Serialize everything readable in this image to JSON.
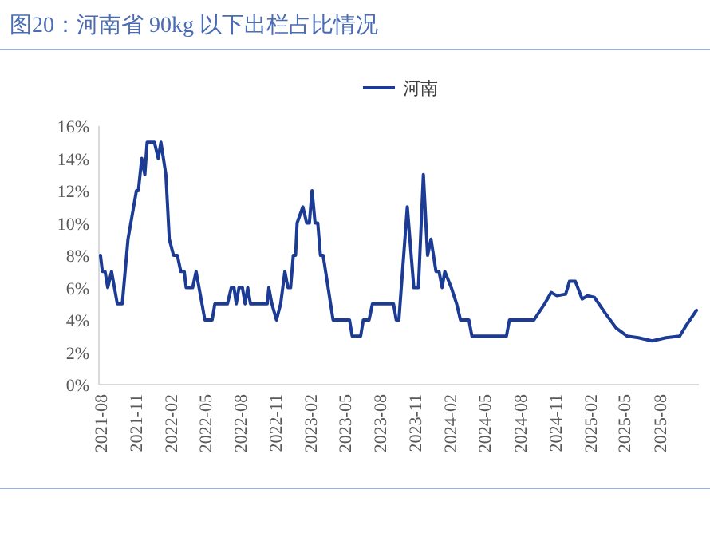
{
  "chart_data": {
    "type": "line",
    "title": "图20：河南省 90kg 以下出栏占比情况",
    "x": [
      "2021-08-01",
      "2021-08-06",
      "2021-08-13",
      "2021-08-20",
      "2021-08-30",
      "2021-09-14",
      "2021-09-27",
      "2021-10-12",
      "2021-11-03",
      "2021-11-08",
      "2021-11-17",
      "2021-11-25",
      "2021-12-01",
      "2021-12-20",
      "2021-12-30",
      "2022-01-06",
      "2022-01-19",
      "2022-01-28",
      "2022-02-08",
      "2022-02-18",
      "2022-02-27",
      "2022-03-08",
      "2022-03-13",
      "2022-03-30",
      "2022-04-08",
      "2022-05-01",
      "2022-05-20",
      "2022-05-27",
      "2022-06-29",
      "2022-07-09",
      "2022-07-16",
      "2022-07-22",
      "2022-07-29",
      "2022-08-07",
      "2022-08-14",
      "2022-08-21",
      "2022-08-28",
      "2022-10-11",
      "2022-10-15",
      "2022-10-23",
      "2022-11-04",
      "2022-11-15",
      "2022-11-26",
      "2022-12-04",
      "2022-12-11",
      "2022-12-18",
      "2022-12-24",
      "2022-12-28",
      "2023-01-12",
      "2023-01-22",
      "2023-01-29",
      "2023-02-05",
      "2023-02-13",
      "2023-02-20",
      "2023-02-27",
      "2023-03-06",
      "2023-04-01",
      "2023-05-14",
      "2023-05-21",
      "2023-06-12",
      "2023-06-19",
      "2023-07-04",
      "2023-07-13",
      "2023-09-06",
      "2023-09-13",
      "2023-09-20",
      "2023-10-12",
      "2023-10-29",
      "2023-11-10",
      "2023-11-23",
      "2023-12-04",
      "2023-12-13",
      "2023-12-26",
      "2024-01-03",
      "2024-01-11",
      "2024-01-18",
      "2024-02-04",
      "2024-02-18",
      "2024-02-28",
      "2024-03-21",
      "2024-03-29",
      "2024-06-27",
      "2024-07-05",
      "2024-09-07",
      "2024-10-05",
      "2024-10-22",
      "2024-11-06",
      "2024-11-29",
      "2024-12-09",
      "2024-12-24",
      "2025-01-11",
      "2025-01-25",
      "2025-02-12",
      "2025-03-13",
      "2025-04-10",
      "2025-05-09",
      "2025-06-07",
      "2025-07-13",
      "2025-08-18",
      "2025-09-23",
      "2025-10-11",
      "2025-11-06"
    ],
    "series": [
      {
        "name": "河南",
        "color": "#1c3b94",
        "values": [
          8,
          7,
          7,
          6,
          7,
          5,
          5,
          9,
          12,
          12,
          14,
          13,
          15,
          15,
          14,
          15,
          13,
          9,
          8,
          8,
          7,
          7,
          6,
          6,
          7,
          4,
          4,
          5,
          5,
          6,
          6,
          5,
          6,
          6,
          5,
          6,
          5,
          5,
          6,
          5,
          4,
          5,
          7,
          6,
          6,
          8,
          8,
          10,
          11,
          10,
          10,
          12,
          10,
          10,
          8,
          8,
          4,
          4,
          3,
          3,
          4,
          4,
          5,
          5,
          4,
          4,
          11,
          6,
          6,
          13,
          8,
          9,
          7,
          7,
          6,
          7,
          6,
          5,
          4,
          4,
          3,
          3,
          4,
          4,
          5,
          5.7,
          5.5,
          5.6,
          6.4,
          6.4,
          5.3,
          5.5,
          5.4,
          4.4,
          3.5,
          3.0,
          2.9,
          2.7,
          2.9,
          3.0,
          3.7,
          4.6
        ]
      }
    ],
    "xlim": [
      "2021-07-28",
      "2025-11-12"
    ],
    "xticks": [
      "2021-08",
      "2021-11",
      "2022-02",
      "2022-05",
      "2022-08",
      "2022-11",
      "2023-02",
      "2023-05",
      "2023-08",
      "2023-11",
      "2024-02",
      "2024-05",
      "2024-08",
      "2024-11",
      "2025-02",
      "2025-05",
      "2025-08"
    ],
    "ylim": [
      0,
      16
    ],
    "yticks": [
      {
        "value": 0,
        "label": "0%"
      },
      {
        "value": 2,
        "label": "2%"
      },
      {
        "value": 4,
        "label": "4%"
      },
      {
        "value": 6,
        "label": "6%"
      },
      {
        "value": 8,
        "label": "8%"
      },
      {
        "value": 10,
        "label": "10%"
      },
      {
        "value": 12,
        "label": "12%"
      },
      {
        "value": 14,
        "label": "14%"
      },
      {
        "value": 16,
        "label": "16%"
      }
    ],
    "legend": "top",
    "grid": false,
    "marker": "none",
    "line_style": "solid"
  }
}
